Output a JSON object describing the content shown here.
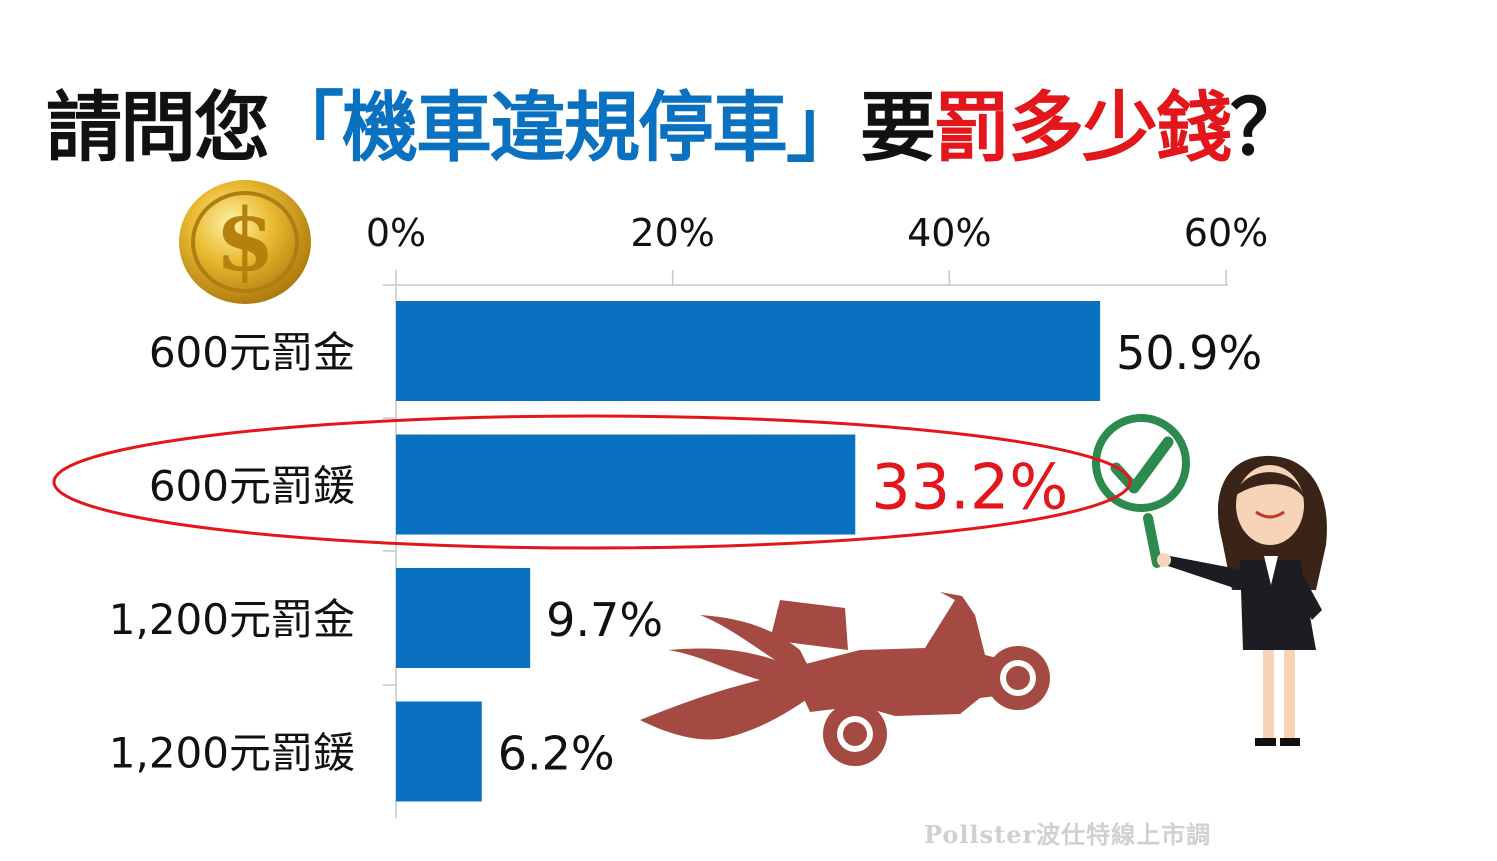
{
  "title": {
    "part1": "請問您",
    "part2": "「機車違規停車」",
    "part3": "要",
    "part4": "罰多少錢",
    "part5": "？",
    "colors": {
      "black": "#111111",
      "blue": "#0a70c0",
      "red": "#e3161c"
    }
  },
  "chart_data": {
    "type": "bar",
    "orientation": "horizontal",
    "categories": [
      "600元罰金",
      "600元罰鍰",
      "1,200元罰金",
      "1,200元罰鍰"
    ],
    "values": [
      50.9,
      33.2,
      9.7,
      6.2
    ],
    "value_labels": [
      "50.9%",
      "33.2%",
      "9.7%",
      "6.2%"
    ],
    "highlight_index": 1,
    "x_ticks": [
      "0%",
      "20%",
      "40%",
      "60%"
    ],
    "x_tick_values": [
      0,
      20,
      40,
      60
    ],
    "xlim": [
      0,
      60
    ],
    "axis_position": "top",
    "grid": false,
    "bar_color": "#0a70c0",
    "highlight_color": "#e3161c",
    "label_color": "#111111"
  },
  "decorations": {
    "coin_icon": "gold-dollar-coin-icon",
    "scooter_icon": "speeding-scooter-icon",
    "presenter_icon": "businesswoman-with-magnifier-icon",
    "check_icon": "checkmark-icon"
  },
  "watermark": "Pollster波仕特線上市調"
}
